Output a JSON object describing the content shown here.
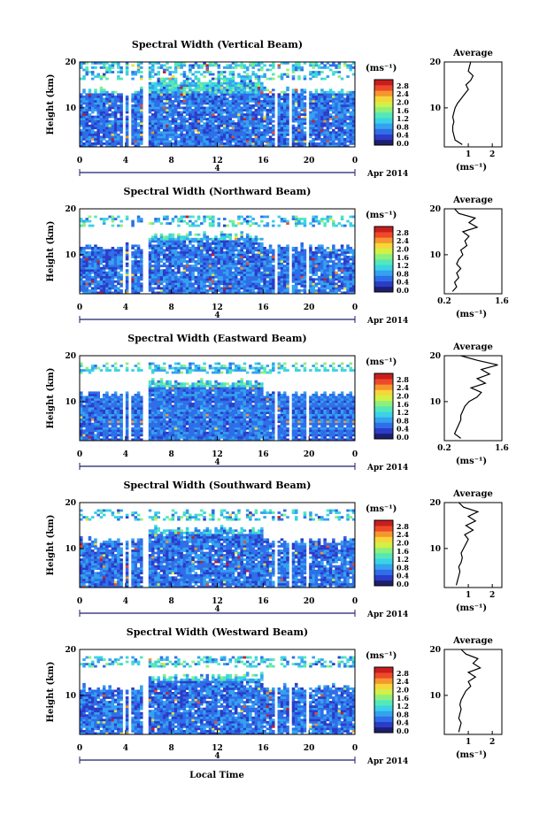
{
  "figure": {
    "xlabel": "Local Time",
    "date_label": "Apr 2014",
    "day_label": "4",
    "ylabel": "Height (km)",
    "colorbar_units": "(ms⁻¹)",
    "average_title": "Average",
    "average_xlabel": "(ms⁻¹)"
  },
  "colors": {
    "colormap": [
      "#1e1e6e",
      "#2a3cc8",
      "#2f6ee8",
      "#34a2f0",
      "#3ad2e6",
      "#54e8b8",
      "#8ef07c",
      "#d2f046",
      "#f6d63a",
      "#f6962e",
      "#ee4a2a",
      "#c81e1e"
    ],
    "missing": "#ffffff",
    "profile_line": "#000000"
  },
  "chart_data": [
    {
      "type": "heatmap",
      "title": "Spectral Width (Vertical Beam)",
      "xlim": [
        0,
        24
      ],
      "ylim": [
        1.5,
        20
      ],
      "xticks": [
        "0",
        "4",
        "8",
        "12",
        "16",
        "20",
        "0"
      ],
      "yticks": [
        "10",
        "20"
      ],
      "colorbar": {
        "range": [
          0,
          2.8
        ],
        "ticks": [
          "0.0",
          "0.4",
          "0.8",
          "1.2",
          "1.6",
          "2.0",
          "2.4",
          "2.8"
        ]
      },
      "data_gaps_hours": [
        [
          3.7,
          3.9
        ],
        [
          4.3,
          4.6
        ],
        [
          5.5,
          5.9
        ],
        [
          17.0,
          17.2
        ],
        [
          18.3,
          18.5
        ],
        [
          19.7,
          20.0
        ]
      ],
      "profile": {
        "xlim": [
          0,
          2.4
        ],
        "xticks": [
          "1",
          "2"
        ],
        "heights": [
          2,
          3,
          4,
          5,
          6,
          7,
          8,
          9,
          10,
          11,
          12,
          13,
          14,
          15,
          16,
          17,
          18,
          19,
          20
        ],
        "values": [
          0.75,
          0.45,
          0.4,
          0.35,
          0.35,
          0.4,
          0.35,
          0.4,
          0.45,
          0.55,
          0.7,
          0.85,
          1.0,
          0.9,
          1.1,
          1.2,
          1.0,
          1.05,
          1.1
        ]
      }
    },
    {
      "type": "heatmap",
      "title": "Spectral Width (Northward Beam)",
      "xlim": [
        0,
        24
      ],
      "ylim": [
        1.5,
        20
      ],
      "xticks": [
        "0",
        "4",
        "8",
        "12",
        "16",
        "20",
        "0"
      ],
      "yticks": [
        "10",
        "20"
      ],
      "colorbar": {
        "range": [
          0,
          2.8
        ],
        "ticks": [
          "0.0",
          "0.4",
          "0.8",
          "1.2",
          "1.6",
          "2.0",
          "2.4",
          "2.8"
        ]
      },
      "data_gaps_hours": [
        [
          3.7,
          3.9
        ],
        [
          4.3,
          4.6
        ],
        [
          5.5,
          5.9
        ],
        [
          17.0,
          17.2
        ],
        [
          18.3,
          18.5
        ],
        [
          19.7,
          20.0
        ]
      ],
      "profile": {
        "xlim": [
          0.2,
          1.6
        ],
        "xticks": [
          "0.2",
          "1.6"
        ],
        "heights": [
          2,
          3,
          4,
          5,
          6,
          7,
          8,
          9,
          10,
          11,
          12,
          13,
          14,
          15,
          16,
          17,
          18,
          19,
          20
        ],
        "values": [
          0.4,
          0.5,
          0.45,
          0.55,
          0.5,
          0.6,
          0.5,
          0.55,
          0.65,
          0.6,
          0.75,
          0.7,
          0.8,
          0.65,
          1.0,
          0.8,
          0.95,
          0.55,
          0.45
        ]
      }
    },
    {
      "type": "heatmap",
      "title": "Spectral Width (Eastward Beam)",
      "xlim": [
        0,
        24
      ],
      "ylim": [
        1.5,
        20
      ],
      "xticks": [
        "0",
        "4",
        "8",
        "12",
        "16",
        "20",
        "0"
      ],
      "yticks": [
        "10",
        "20"
      ],
      "colorbar": {
        "range": [
          0,
          2.8
        ],
        "ticks": [
          "0.0",
          "0.4",
          "0.8",
          "1.2",
          "1.6",
          "2.0",
          "2.4",
          "2.8"
        ]
      },
      "data_gaps_hours": [
        [
          3.7,
          3.9
        ],
        [
          4.3,
          4.6
        ],
        [
          5.5,
          5.9
        ],
        [
          17.0,
          17.2
        ],
        [
          18.3,
          18.5
        ],
        [
          19.7,
          20.0
        ]
      ],
      "profile": {
        "xlim": [
          0.2,
          1.6
        ],
        "xticks": [
          "0.2",
          "1.6"
        ],
        "heights": [
          2,
          3,
          4,
          5,
          6,
          7,
          8,
          9,
          10,
          11,
          12,
          13,
          14,
          15,
          16,
          17,
          18,
          19,
          20
        ],
        "values": [
          0.6,
          0.45,
          0.5,
          0.55,
          0.6,
          0.6,
          0.65,
          0.7,
          0.8,
          1.0,
          1.1,
          0.85,
          1.2,
          1.0,
          1.3,
          1.1,
          1.5,
          1.0,
          0.6
        ]
      }
    },
    {
      "type": "heatmap",
      "title": "Spectral Width (Southward Beam)",
      "xlim": [
        0,
        24
      ],
      "ylim": [
        1.5,
        20
      ],
      "xticks": [
        "0",
        "4",
        "8",
        "12",
        "16",
        "20",
        "0"
      ],
      "yticks": [
        "10",
        "20"
      ],
      "colorbar": {
        "range": [
          0,
          2.8
        ],
        "ticks": [
          "0.0",
          "0.4",
          "0.8",
          "1.2",
          "1.6",
          "2.0",
          "2.4",
          "2.8"
        ]
      },
      "data_gaps_hours": [
        [
          3.7,
          3.9
        ],
        [
          4.3,
          4.6
        ],
        [
          5.5,
          5.9
        ],
        [
          17.0,
          17.2
        ],
        [
          18.3,
          18.5
        ],
        [
          19.7,
          20.0
        ]
      ],
      "profile": {
        "xlim": [
          0,
          2.4
        ],
        "xticks": [
          "1",
          "2"
        ],
        "heights": [
          2,
          3,
          4,
          5,
          6,
          7,
          8,
          9,
          10,
          11,
          12,
          13,
          14,
          15,
          16,
          17,
          18,
          19,
          20
        ],
        "values": [
          0.5,
          0.55,
          0.6,
          0.65,
          0.6,
          0.7,
          0.75,
          0.7,
          0.8,
          0.9,
          1.0,
          0.85,
          1.2,
          0.9,
          1.3,
          1.0,
          1.4,
          0.8,
          0.6
        ]
      }
    },
    {
      "type": "heatmap",
      "title": "Spectral Width (Westward Beam)",
      "xlim": [
        0,
        24
      ],
      "ylim": [
        1.5,
        20
      ],
      "xticks": [
        "0",
        "4",
        "8",
        "12",
        "16",
        "20",
        "0"
      ],
      "yticks": [
        "10",
        "20"
      ],
      "colorbar": {
        "range": [
          0,
          2.8
        ],
        "ticks": [
          "0.0",
          "0.4",
          "0.8",
          "1.2",
          "1.6",
          "2.0",
          "2.4",
          "2.8"
        ]
      },
      "data_gaps_hours": [
        [
          3.7,
          3.9
        ],
        [
          4.3,
          4.6
        ],
        [
          5.5,
          5.9
        ],
        [
          17.0,
          17.2
        ],
        [
          18.3,
          18.5
        ],
        [
          19.7,
          20.0
        ]
      ],
      "profile": {
        "xlim": [
          0,
          2.4
        ],
        "xticks": [
          "1",
          "2"
        ],
        "heights": [
          2,
          3,
          4,
          5,
          6,
          7,
          8,
          9,
          10,
          11,
          12,
          13,
          14,
          15,
          16,
          17,
          18,
          19,
          20
        ],
        "values": [
          0.6,
          0.65,
          0.7,
          0.6,
          0.65,
          0.7,
          0.65,
          0.7,
          0.8,
          0.9,
          1.1,
          1.0,
          1.3,
          1.0,
          1.5,
          1.2,
          1.4,
          0.9,
          0.7
        ]
      }
    }
  ]
}
